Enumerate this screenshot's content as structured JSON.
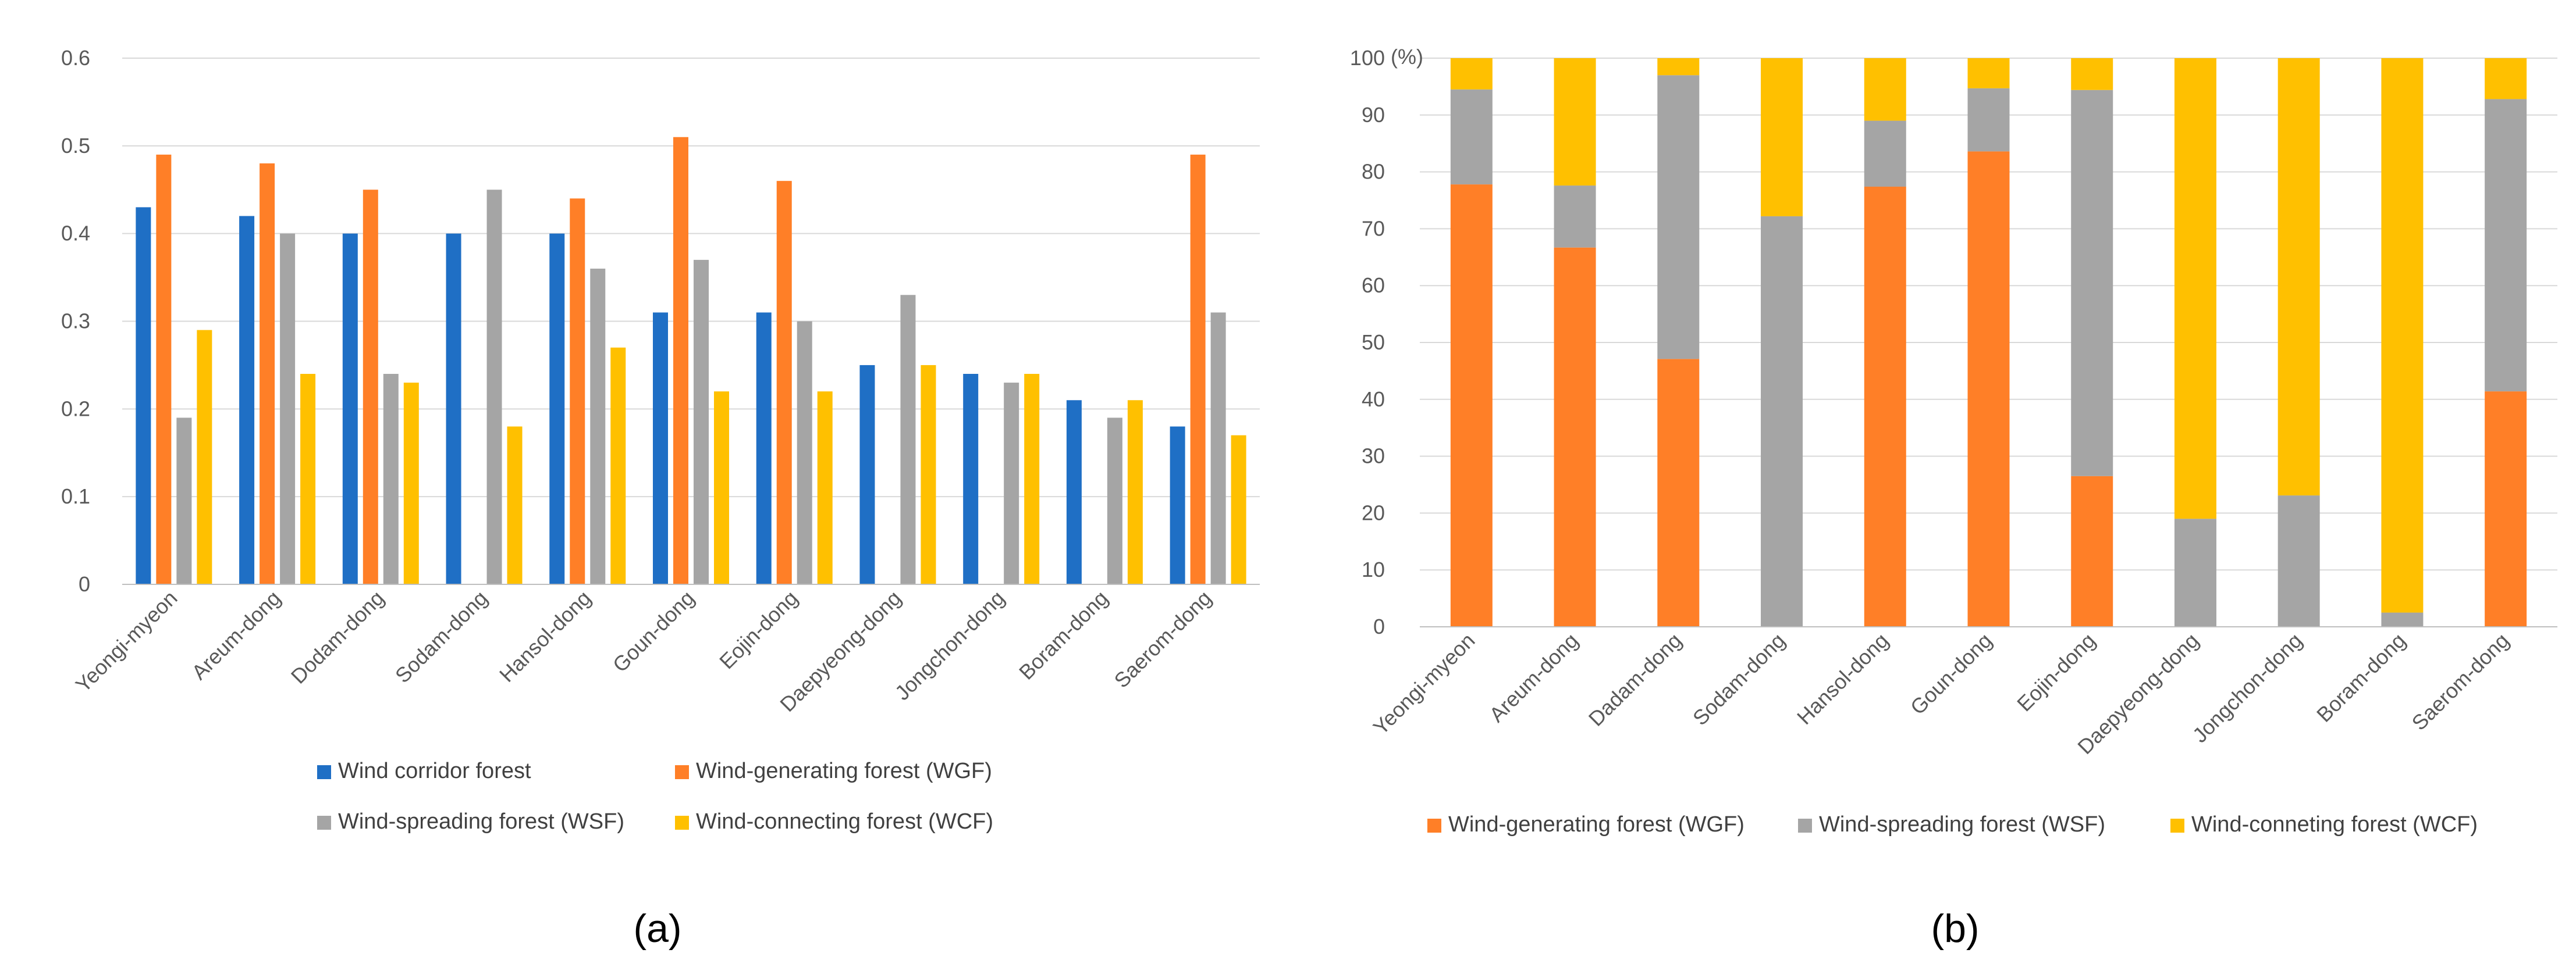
{
  "colors": {
    "wind_corridor": "#1F6FC5",
    "wgf": "#FF7F27",
    "wsf": "#A5A5A5",
    "wcf": "#FFC000",
    "grid": "#D9D9D9",
    "axis": "#BFBFBF"
  },
  "chart_data": [
    {
      "id": "a",
      "type": "bar",
      "panel_label": "(a)",
      "title": "",
      "xlabel": "",
      "ylabel": "",
      "ylim": [
        0,
        0.6
      ],
      "yticks": [
        "0",
        "0.1",
        "0.2",
        "0.3",
        "0.4",
        "0.5",
        "0.6"
      ],
      "grid": true,
      "legend_position": "bottom",
      "categories": [
        "Yeongi-myeon",
        "Areum-dong",
        "Dodam-dong",
        "Sodam-dong",
        "Hansol-dong",
        "Goun-dong",
        "Eojin-dong",
        "Daepyeong-dong",
        "Jongchon-dong",
        "Boram-dong",
        "Saerom-dong"
      ],
      "series": [
        {
          "name": "Wind corridor forest",
          "color_key": "wind_corridor",
          "values": [
            0.43,
            0.42,
            0.4,
            0.4,
            0.4,
            0.31,
            0.31,
            0.25,
            0.24,
            0.21,
            0.18
          ]
        },
        {
          "name": "Wind-generating forest (WGF)",
          "color_key": "wgf",
          "values": [
            0.49,
            0.48,
            0.45,
            0,
            0.44,
            0.51,
            0.46,
            0,
            0,
            0,
            0.49
          ]
        },
        {
          "name": "Wind-spreading forest (WSF)",
          "color_key": "wsf",
          "values": [
            0.19,
            0.4,
            0.24,
            0.45,
            0.36,
            0.37,
            0.3,
            0.33,
            0.23,
            0.19,
            0.31
          ]
        },
        {
          "name": "Wind-connecting forest (WCF)",
          "color_key": "wcf",
          "values": [
            0.29,
            0.24,
            0.23,
            0.18,
            0.27,
            0.22,
            0.22,
            0.25,
            0.24,
            0.21,
            0.17
          ]
        }
      ]
    },
    {
      "id": "b",
      "type": "bar",
      "stacked": true,
      "panel_label": "(b)",
      "title": "",
      "xlabel": "",
      "ylabel": "(%)",
      "ylim": [
        0,
        100
      ],
      "yticks": [
        "0",
        "10",
        "20",
        "30",
        "40",
        "50",
        "60",
        "70",
        "80",
        "90",
        "100"
      ],
      "grid": true,
      "legend_position": "bottom",
      "categories": [
        "Yeongi-myeon",
        "Areum-dong",
        "Dadam-dong",
        "Sodam-dong",
        "Hansol-dong",
        "Goun-dong",
        "Eojin-dong",
        "Daepyeong-dong",
        "Jongchon-dong",
        "Boram-dong",
        "Saerom-dong"
      ],
      "series": [
        {
          "name": "Wind-generating forest (WGF)",
          "color_key": "wgf",
          "values": [
            77.8,
            66.7,
            47.1,
            0,
            77.4,
            83.6,
            26.5,
            0,
            0,
            0,
            41.4
          ]
        },
        {
          "name": "Wind-spreading forest (WSF)",
          "color_key": "wsf",
          "values": [
            16.7,
            10.9,
            49.9,
            72.2,
            11.6,
            11.1,
            67.9,
            19.0,
            23.1,
            2.5,
            51.4
          ]
        },
        {
          "name": "Wind-conneting forest (WCF)",
          "color_key": "wcf",
          "values": [
            5.5,
            22.4,
            3.0,
            27.8,
            11.0,
            5.3,
            5.6,
            81.0,
            76.9,
            97.5,
            7.2
          ]
        }
      ]
    }
  ]
}
